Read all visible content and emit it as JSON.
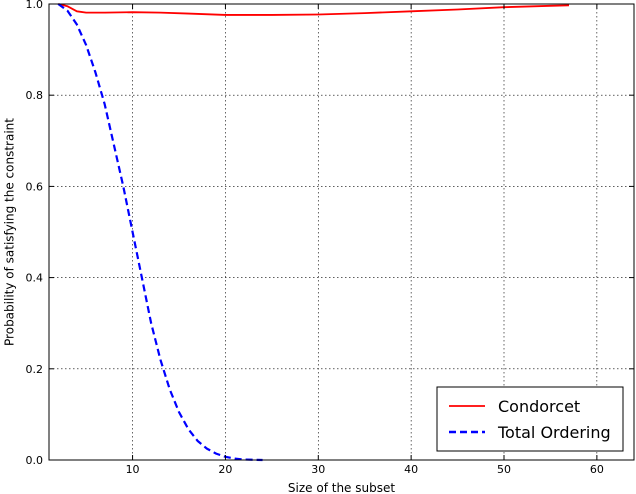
{
  "chart_data": {
    "type": "line",
    "title": "",
    "xlabel": "Size of the subset",
    "ylabel": "Probability of satisfying the constraint",
    "xlim": [
      1,
      64
    ],
    "ylim": [
      0.0,
      1.0
    ],
    "x_ticks": [
      10,
      20,
      30,
      40,
      50,
      60
    ],
    "y_ticks": [
      0.0,
      0.2,
      0.4,
      0.6,
      0.8,
      1.0
    ],
    "x_tick_labels": [
      "10",
      "20",
      "30",
      "40",
      "50",
      "60"
    ],
    "y_tick_labels": [
      "0.0",
      "0.2",
      "0.4",
      "0.6",
      "0.8",
      "1.0"
    ],
    "grid": true,
    "legend_position": "lower-right",
    "series": [
      {
        "name": "Condorcet",
        "color": "#ff0000",
        "style": "solid",
        "points": [
          [
            2,
            1.0
          ],
          [
            3,
            0.995
          ],
          [
            4,
            0.984
          ],
          [
            5,
            0.981
          ],
          [
            7,
            0.981
          ],
          [
            10,
            0.982
          ],
          [
            13,
            0.981
          ],
          [
            16,
            0.979
          ],
          [
            20,
            0.976
          ],
          [
            25,
            0.976
          ],
          [
            30,
            0.977
          ],
          [
            35,
            0.98
          ],
          [
            40,
            0.984
          ],
          [
            45,
            0.988
          ],
          [
            50,
            0.993
          ],
          [
            55,
            0.996
          ],
          [
            57,
            0.997
          ]
        ]
      },
      {
        "name": "Total Ordering",
        "color": "#0000ff",
        "style": "dashed",
        "points": [
          [
            2,
            1.0
          ],
          [
            3,
            0.985
          ],
          [
            4,
            0.955
          ],
          [
            5,
            0.91
          ],
          [
            6,
            0.85
          ],
          [
            7,
            0.78
          ],
          [
            8,
            0.69
          ],
          [
            9,
            0.6
          ],
          [
            10,
            0.5
          ],
          [
            11,
            0.4
          ],
          [
            12,
            0.3
          ],
          [
            13,
            0.22
          ],
          [
            14,
            0.155
          ],
          [
            15,
            0.105
          ],
          [
            16,
            0.068
          ],
          [
            17,
            0.042
          ],
          [
            18,
            0.025
          ],
          [
            19,
            0.014
          ],
          [
            20,
            0.007
          ],
          [
            21,
            0.003
          ],
          [
            22,
            0.001
          ],
          [
            24,
            0.0
          ]
        ]
      }
    ]
  }
}
